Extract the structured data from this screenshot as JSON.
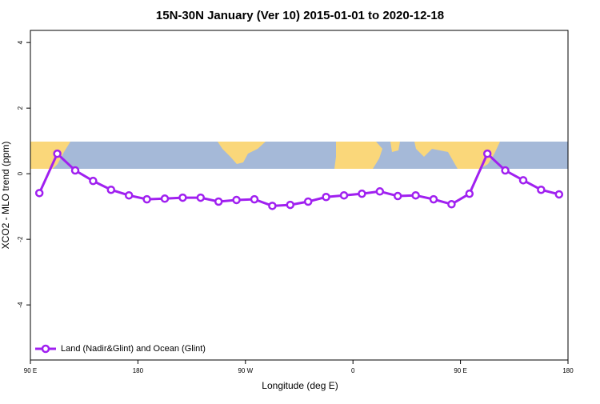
{
  "chart_data": {
    "type": "line",
    "title": "15N-30N January (Ver 10)   2015-01-01 to 2020-12-18",
    "x_label": "Longitude (deg E)",
    "y_label": "XCO2 - MLO trend (ppm)",
    "x": [
      97.5,
      112.5,
      127.5,
      142.5,
      157.5,
      172.5,
      187.5,
      202.5,
      217.5,
      232.5,
      247.5,
      262.5,
      277.5,
      292.5,
      307.5,
      322.5,
      337.5,
      352.5,
      367.5,
      382.5,
      397.5,
      412.5,
      427.5,
      442.5,
      457.5,
      472.5,
      487.5,
      502.5,
      517.5,
      532.5
    ],
    "series": [
      {
        "name": "Land (Nadir&Glint) and Ocean (Glint)",
        "color": "#a020f0",
        "values": [
          -0.59,
          0.61,
          0.1,
          -0.22,
          -0.49,
          -0.66,
          -0.78,
          -0.76,
          -0.73,
          -0.73,
          -0.85,
          -0.8,
          -0.78,
          -0.98,
          -0.95,
          -0.85,
          -0.71,
          -0.66,
          -0.61,
          -0.54,
          -0.68,
          -0.66,
          -0.78,
          -0.93,
          -0.61,
          0.61,
          0.1,
          -0.2,
          -0.49,
          -0.63
        ]
      }
    ],
    "xlim": [
      90,
      540
    ],
    "xticks": [
      {
        "value": 90,
        "label": "90 E"
      },
      180,
      {
        "value": 270,
        "label": "90 W"
      },
      {
        "value": 360,
        "label": "0"
      },
      {
        "value": 450,
        "label": "90 E"
      },
      {
        "value": 540,
        "label": "180"
      }
    ],
    "ylim": [
      -5.68,
      4.37
    ],
    "yticks": [
      -4,
      -2,
      0,
      2,
      4
    ],
    "legend": "bottom-left"
  }
}
